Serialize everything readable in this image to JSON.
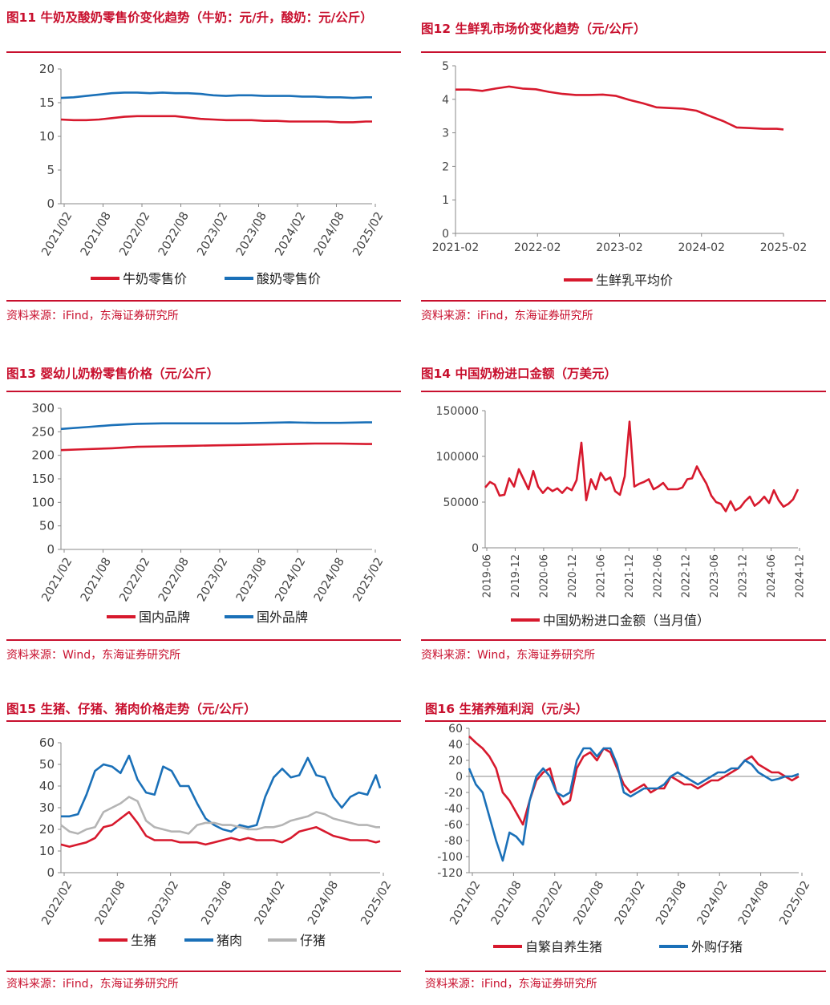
{
  "colors": {
    "red": "#d7192d",
    "blue": "#1a70b8",
    "gray": "#b4b4b4",
    "accent": "#c8102e"
  },
  "chart_data": [
    {
      "id": "c11",
      "type": "line",
      "title": "图11  牛奶及酸奶零售价变化趋势（牛奶：元/升，酸奶：元/公斤）",
      "source": "资料来源：iFind，东海证券研究所",
      "ylim": [
        0,
        20
      ],
      "yticks": [
        "20",
        "15",
        "10",
        "5",
        "0"
      ],
      "xticks": [
        "2021/02",
        "2021/08",
        "2022/02",
        "2022/08",
        "2023/02",
        "2023/08",
        "2024/02",
        "2024/08",
        "2025/02"
      ],
      "series": [
        {
          "name": "牛奶零售价",
          "color": "red",
          "x": [
            0,
            2,
            4,
            6,
            8,
            10,
            12,
            14,
            16,
            18,
            20,
            22,
            24,
            26,
            28,
            30,
            32,
            34,
            36,
            38,
            40,
            42,
            44,
            46,
            48,
            49
          ],
          "values": [
            12.5,
            12.4,
            12.4,
            12.5,
            12.7,
            12.9,
            13.0,
            13.0,
            13.0,
            13.0,
            12.8,
            12.6,
            12.5,
            12.4,
            12.4,
            12.4,
            12.3,
            12.3,
            12.2,
            12.2,
            12.2,
            12.2,
            12.1,
            12.1,
            12.2,
            12.2
          ]
        },
        {
          "name": "酸奶零售价",
          "color": "blue",
          "x": [
            0,
            2,
            4,
            6,
            8,
            10,
            12,
            14,
            16,
            18,
            20,
            22,
            24,
            26,
            28,
            30,
            32,
            34,
            36,
            38,
            40,
            42,
            44,
            46,
            48,
            49
          ],
          "values": [
            15.7,
            15.8,
            16.0,
            16.2,
            16.4,
            16.5,
            16.5,
            16.4,
            16.5,
            16.4,
            16.4,
            16.3,
            16.1,
            16.0,
            16.1,
            16.1,
            16.0,
            16.0,
            16.0,
            15.9,
            15.9,
            15.8,
            15.8,
            15.7,
            15.8,
            15.8
          ]
        }
      ]
    },
    {
      "id": "c12",
      "type": "line",
      "title": "图12  生鲜乳市场价变化趋势（元/公斤）",
      "source": "",
      "ylim": [
        0,
        5
      ],
      "yticks": [
        "5",
        "4",
        "3",
        "2",
        "1",
        "0"
      ],
      "xticks": [
        "2021-02",
        "2022-02",
        "2023-02",
        "2024-02",
        "2025-02"
      ],
      "series": [
        {
          "name": "生鲜乳平均价",
          "color": "red",
          "x": [
            0,
            2,
            4,
            6,
            8,
            10,
            12,
            14,
            16,
            18,
            20,
            22,
            24,
            26,
            28,
            30,
            32,
            34,
            36,
            38,
            40,
            42,
            44,
            46,
            48,
            49
          ],
          "values": [
            4.29,
            4.29,
            4.25,
            4.32,
            4.38,
            4.32,
            4.3,
            4.22,
            4.16,
            4.13,
            4.13,
            4.14,
            4.1,
            3.98,
            3.88,
            3.76,
            3.74,
            3.72,
            3.66,
            3.5,
            3.35,
            3.16,
            3.14,
            3.12,
            3.12,
            3.1
          ]
        }
      ]
    },
    {
      "id": "c13",
      "type": "line",
      "title": "图13  婴幼儿奶粉零售价格（元/公斤）",
      "source": "资料来源：Wind，东海证券研究所",
      "ylim": [
        0,
        300
      ],
      "yticks": [
        "300",
        "250",
        "200",
        "150",
        "100",
        "50",
        "0"
      ],
      "xticks": [
        "2021/02",
        "2021/08",
        "2022/02",
        "2022/08",
        "2023/02",
        "2023/08",
        "2024/02",
        "2024/08",
        "2025/02"
      ],
      "series": [
        {
          "name": "国内品牌",
          "color": "red",
          "x": [
            0,
            4,
            8,
            12,
            16,
            20,
            24,
            28,
            32,
            36,
            40,
            44,
            48,
            49
          ],
          "values": [
            211,
            213,
            215,
            218,
            219,
            220,
            221,
            222,
            223,
            224,
            225,
            225,
            224,
            224
          ]
        },
        {
          "name": "国外品牌",
          "color": "blue",
          "x": [
            0,
            4,
            8,
            12,
            16,
            20,
            24,
            28,
            32,
            36,
            40,
            44,
            48,
            49
          ],
          "values": [
            256,
            260,
            264,
            267,
            268,
            268,
            268,
            268,
            269,
            270,
            269,
            269,
            270,
            270
          ]
        }
      ]
    },
    {
      "id": "c14",
      "type": "line",
      "title": "图14  中国奶粉进口金额（万美元）",
      "source": "",
      "ylim": [
        0,
        150000
      ],
      "yticks": [
        "150000",
        "100000",
        "50000",
        "0"
      ],
      "xticks": [
        "2019-06",
        "2019-12",
        "2020-06",
        "2020-12",
        "2021-06",
        "2021-12",
        "2022-06",
        "2022-12",
        "2023-06",
        "2023-12",
        "2024-06",
        "2024-12"
      ],
      "series": [
        {
          "name": "中国奶粉进口金额（当月值）",
          "color": "red",
          "values": [
            66000,
            72000,
            69000,
            57000,
            58000,
            76000,
            67000,
            86000,
            75000,
            64000,
            84000,
            67000,
            60000,
            66000,
            62000,
            65000,
            60000,
            66000,
            63000,
            74000,
            115000,
            52000,
            75000,
            64000,
            82000,
            74000,
            77000,
            62000,
            58000,
            78000,
            138000,
            67000,
            70000,
            72000,
            75000,
            64000,
            67000,
            71000,
            64000,
            64000,
            64000,
            66000,
            75000,
            76000,
            89000,
            79000,
            70000,
            57000,
            50000,
            48000,
            40000,
            51000,
            41000,
            44000,
            51000,
            56000,
            46000,
            50000,
            56000,
            49000,
            63000,
            52000,
            45000,
            48000,
            53000,
            64000
          ]
        }
      ]
    },
    {
      "id": "c15",
      "type": "line",
      "title": "图15  生猪、仔猪、猪肉价格走势（元/公斤）",
      "source": "资料来源：iFind，东海证券研究所",
      "ylim": [
        0,
        60
      ],
      "yticks": [
        "60",
        "50",
        "40",
        "30",
        "20",
        "10",
        "0"
      ],
      "xticks": [
        "2022/02",
        "2022/08",
        "2023/02",
        "2023/08",
        "2024/02",
        "2024/08",
        "2025/02"
      ],
      "series": [
        {
          "name": "生猪",
          "color": "red",
          "x": [
            0,
            1,
            2,
            3,
            4,
            5,
            6,
            7,
            8,
            9,
            10,
            11,
            12,
            13,
            14,
            15,
            16,
            17,
            18,
            19,
            20,
            21,
            22,
            23,
            24,
            25,
            26,
            27,
            28,
            29,
            30,
            31,
            32,
            33,
            34,
            35,
            36,
            37,
            37.5
          ],
          "values": [
            13,
            12,
            13,
            14,
            16,
            21,
            22,
            25,
            28,
            23,
            17,
            15,
            15,
            15,
            14,
            14,
            14,
            13,
            14,
            15,
            16,
            15,
            16,
            15,
            15,
            15,
            14,
            16,
            19,
            20,
            21,
            19,
            17,
            16,
            15,
            15,
            15,
            14,
            14.5
          ]
        },
        {
          "name": "猪肉",
          "color": "blue",
          "x": [
            0,
            1,
            2,
            3,
            4,
            5,
            6,
            7,
            8,
            9,
            10,
            11,
            12,
            13,
            14,
            15,
            16,
            17,
            18,
            19,
            20,
            21,
            22,
            23,
            24,
            25,
            26,
            27,
            28,
            29,
            30,
            31,
            32,
            33,
            34,
            35,
            36,
            37,
            37.5
          ],
          "values": [
            26,
            26,
            27,
            36,
            47,
            50,
            49,
            46,
            54,
            43,
            37,
            36,
            49,
            47,
            40,
            40,
            32,
            25,
            22,
            20,
            19,
            22,
            21,
            22,
            35,
            44,
            48,
            44,
            45,
            53,
            45,
            44,
            35,
            30,
            35,
            37,
            36,
            45,
            39
          ]
        },
        {
          "name": "仔猪",
          "color": "gray",
          "x": [
            0,
            1,
            2,
            3,
            4,
            5,
            6,
            7,
            8,
            9,
            10,
            11,
            12,
            13,
            14,
            15,
            16,
            17,
            18,
            19,
            20,
            21,
            22,
            23,
            24,
            25,
            26,
            27,
            28,
            29,
            30,
            31,
            32,
            33,
            34,
            35,
            36,
            37,
            37.5
          ],
          "values": [
            22,
            19,
            18,
            20,
            21,
            28,
            30,
            32,
            35,
            33,
            24,
            21,
            20,
            19,
            19,
            18,
            22,
            23,
            23,
            22,
            22,
            21,
            20,
            20,
            21,
            21,
            22,
            24,
            25,
            26,
            28,
            27,
            25,
            24,
            23,
            22,
            22,
            21,
            21
          ]
        }
      ]
    },
    {
      "id": "c16",
      "type": "line",
      "title": "图16  生猪养殖利润（元/头）",
      "source": "资料来源：iFind，东海证券研究所",
      "ylim": [
        -120,
        60
      ],
      "yticks": [
        "60",
        "40",
        "20",
        "0",
        "-20",
        "-40",
        "-60",
        "-80",
        "-100",
        "-120"
      ],
      "xticks": [
        "2021/02",
        "2021/08",
        "2022/02",
        "2022/08",
        "2023/02",
        "2023/08",
        "2024/02",
        "2024/08",
        "2025/02"
      ],
      "series": [
        {
          "name": "自繁自养生猪",
          "color": "red",
          "x": [
            0,
            1,
            2,
            3,
            4,
            5,
            6,
            7,
            8,
            9,
            10,
            11,
            12,
            13,
            14,
            15,
            16,
            17,
            18,
            19,
            20,
            21,
            22,
            23,
            24,
            25,
            26,
            27,
            28,
            29,
            30,
            31,
            32,
            33,
            34,
            35,
            36,
            37,
            38,
            39,
            40,
            41,
            42,
            43,
            44,
            45,
            46,
            47,
            48,
            49
          ],
          "values": [
            50,
            42,
            35,
            25,
            10,
            -20,
            -30,
            -45,
            -60,
            -30,
            -5,
            5,
            10,
            -20,
            -35,
            -30,
            10,
            25,
            30,
            20,
            35,
            30,
            10,
            -10,
            -20,
            -15,
            -10,
            -20,
            -15,
            -15,
            0,
            -5,
            -10,
            -10,
            -15,
            -10,
            -5,
            -5,
            0,
            5,
            10,
            20,
            25,
            15,
            10,
            5,
            5,
            0,
            -5,
            0
          ]
        },
        {
          "name": "外购仔猪",
          "color": "blue",
          "x": [
            0,
            1,
            2,
            3,
            4,
            5,
            6,
            7,
            8,
            9,
            10,
            11,
            12,
            13,
            14,
            15,
            16,
            17,
            18,
            19,
            20,
            21,
            22,
            23,
            24,
            25,
            26,
            27,
            28,
            29,
            30,
            31,
            32,
            33,
            34,
            35,
            36,
            37,
            38,
            39,
            40,
            41,
            42,
            43,
            44,
            45,
            46,
            47,
            48,
            49
          ],
          "values": [
            10,
            -10,
            -20,
            -50,
            -80,
            -105,
            -70,
            -75,
            -85,
            -30,
            0,
            10,
            0,
            -20,
            -25,
            -20,
            20,
            35,
            35,
            25,
            35,
            35,
            15,
            -20,
            -25,
            -20,
            -15,
            -15,
            -15,
            -10,
            0,
            5,
            0,
            -5,
            -10,
            -5,
            0,
            5,
            5,
            10,
            10,
            20,
            15,
            5,
            0,
            -5,
            -3,
            0,
            0,
            3
          ]
        }
      ]
    }
  ]
}
